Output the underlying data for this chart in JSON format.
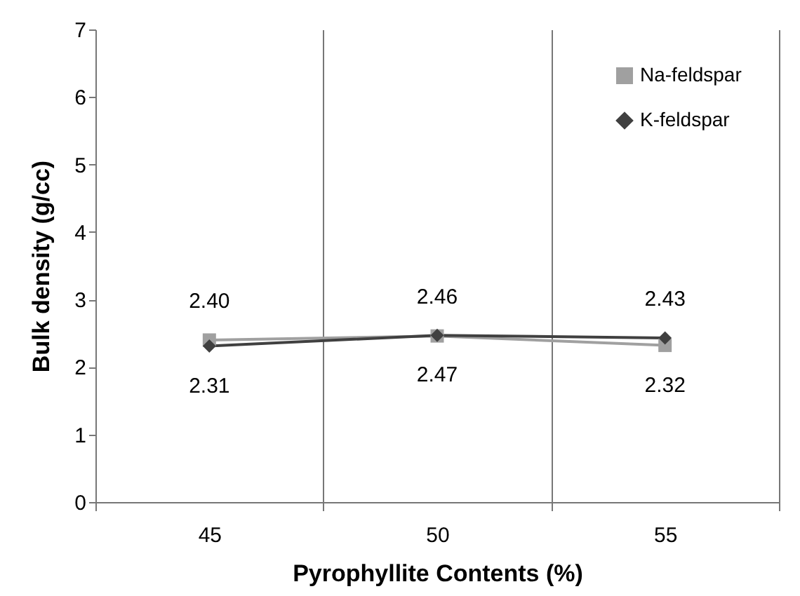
{
  "chart_data": {
    "type": "line",
    "xlabel": "Pyrophyllite Contents  (%)",
    "ylabel": "Bulk density (g/cc)",
    "categories": [
      "45",
      "50",
      "55"
    ],
    "series": [
      {
        "name": "Na-feldspar",
        "color": "#a0a0a0",
        "marker": "square",
        "values": [
          2.4,
          2.46,
          2.32
        ],
        "value_labels": [
          "2.40",
          "2.46",
          "2.32"
        ]
      },
      {
        "name": "K-feldspar",
        "color": "#404040",
        "marker": "diamond",
        "values": [
          2.31,
          2.47,
          2.43
        ],
        "value_labels": [
          "2.31",
          "2.47",
          "2.43"
        ]
      }
    ],
    "ylim": [
      0,
      7
    ],
    "yticks": [
      0,
      1,
      2,
      3,
      4,
      5,
      6,
      7
    ],
    "grid": "x",
    "legend": "top right"
  }
}
